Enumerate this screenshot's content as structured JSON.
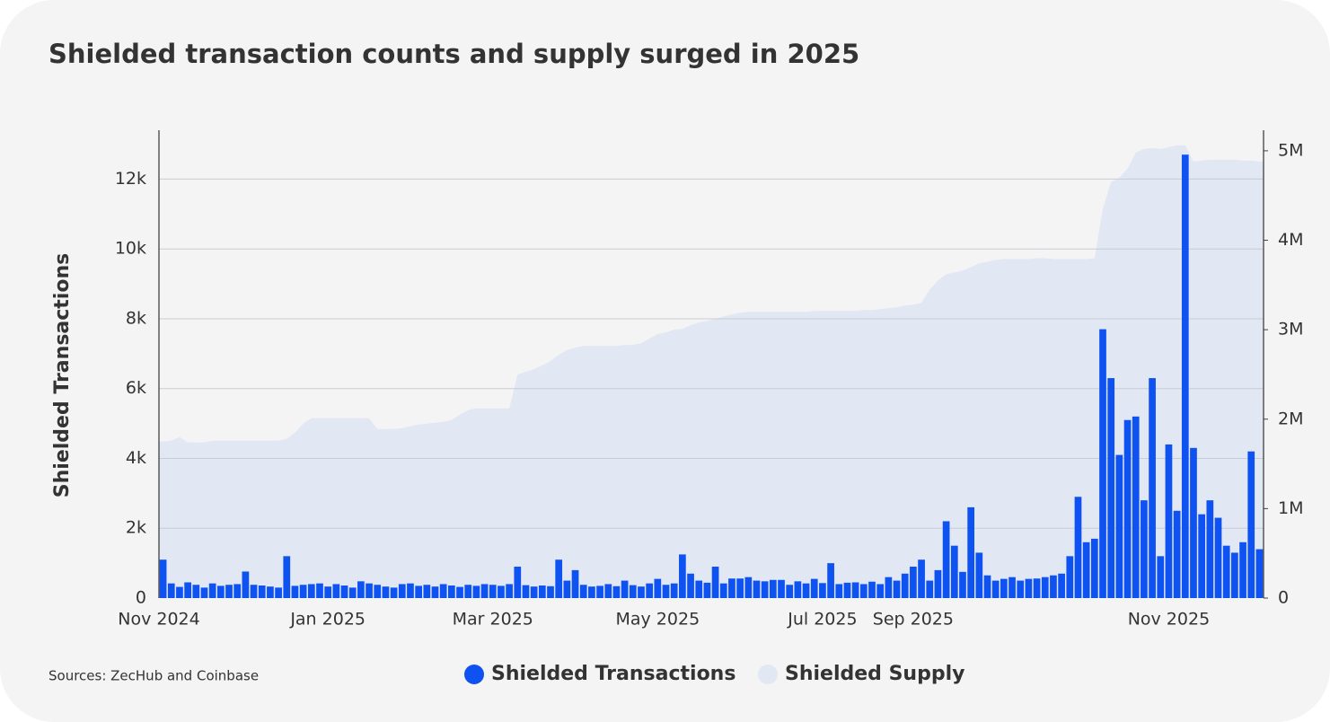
{
  "chart_data": {
    "type": "bar_area",
    "title": "Shielded transaction counts and supply surged in 2025",
    "ylabel": "Shielded Transactions",
    "source": "Sources: ZecHub and Coinbase",
    "categories": [
      "Nov 2024",
      null,
      null,
      null,
      null,
      null,
      null,
      null,
      null,
      null,
      null,
      null,
      null,
      null,
      null,
      null,
      null,
      null,
      null,
      null,
      "Jan 2025",
      null,
      null,
      null,
      null,
      null,
      null,
      null,
      null,
      null,
      null,
      null,
      null,
      null,
      null,
      null,
      null,
      null,
      null,
      null,
      "Mar 2025",
      null,
      null,
      null,
      null,
      null,
      null,
      null,
      null,
      null,
      null,
      null,
      null,
      null,
      null,
      null,
      null,
      null,
      null,
      null,
      "May 2025",
      null,
      null,
      null,
      null,
      null,
      null,
      null,
      null,
      null,
      null,
      null,
      null,
      null,
      null,
      null,
      null,
      null,
      null,
      null,
      "Jul 2025",
      null,
      null,
      null,
      null,
      null,
      null,
      null,
      null,
      null,
      null,
      "Sep 2025",
      null,
      null,
      null,
      null,
      null,
      null,
      null,
      null,
      null,
      null,
      null,
      null,
      null,
      null,
      null,
      null,
      null,
      null,
      null,
      null,
      null,
      null,
      null,
      null,
      null,
      null,
      null,
      null,
      null,
      null,
      "Nov 2025",
      null,
      null,
      null,
      null,
      null,
      null,
      null,
      null,
      null,
      null,
      null
    ],
    "series": [
      {
        "name": "Shielded Transactions",
        "type": "bar",
        "color": "#0f52f2",
        "values": [
          1100,
          420,
          320,
          450,
          380,
          300,
          420,
          350,
          380,
          400,
          760,
          380,
          360,
          330,
          300,
          1200,
          350,
          380,
          400,
          420,
          330,
          400,
          360,
          300,
          480,
          420,
          380,
          330,
          300,
          400,
          420,
          350,
          380,
          330,
          400,
          360,
          320,
          380,
          350,
          400,
          380,
          350,
          400,
          900,
          370,
          330,
          360,
          340,
          1100,
          500,
          800,
          380,
          330,
          350,
          400,
          340,
          500,
          370,
          330,
          420,
          550,
          380,
          420,
          1250,
          700,
          500,
          440,
          900,
          420,
          560,
          560,
          600,
          500,
          480,
          520,
          520,
          380,
          480,
          420,
          550,
          430,
          1000,
          400,
          440,
          450,
          400,
          470,
          400,
          600,
          500,
          700,
          900,
          1100,
          500,
          800,
          2200,
          1500,
          750,
          2600,
          1300,
          650,
          500,
          550,
          600,
          500,
          550,
          560,
          600,
          650,
          700,
          1200,
          2900,
          1600,
          1700,
          7700,
          6300,
          4100,
          5100,
          5200,
          2800,
          6300,
          1200,
          4400,
          2500,
          12700,
          4300,
          2400,
          2800,
          2300,
          1500,
          1300,
          1600,
          4200,
          1400
        ]
      },
      {
        "name": "Shielded Supply",
        "type": "area",
        "axis": "y2",
        "color": "#e1e7f3",
        "values": [
          1750000,
          1760000,
          1800000,
          1740000,
          1740000,
          1740000,
          1760000,
          1760000,
          1760000,
          1760000,
          1760000,
          1760000,
          1760000,
          1760000,
          1760000,
          1780000,
          1850000,
          1950000,
          2010000,
          2010000,
          2010000,
          2010000,
          2010000,
          2010000,
          2010000,
          2010000,
          1890000,
          1890000,
          1890000,
          1900000,
          1920000,
          1940000,
          1950000,
          1960000,
          1970000,
          1990000,
          2050000,
          2100000,
          2120000,
          2120000,
          2120000,
          2120000,
          2120000,
          2500000,
          2530000,
          2560000,
          2600000,
          2650000,
          2720000,
          2770000,
          2800000,
          2820000,
          2820000,
          2820000,
          2820000,
          2820000,
          2830000,
          2830000,
          2850000,
          2900000,
          2950000,
          2970000,
          3000000,
          3010000,
          3050000,
          3080000,
          3100000,
          3120000,
          3150000,
          3170000,
          3190000,
          3200000,
          3200000,
          3200000,
          3200000,
          3200000,
          3200000,
          3200000,
          3200000,
          3210000,
          3210000,
          3210000,
          3210000,
          3210000,
          3210000,
          3220000,
          3220000,
          3230000,
          3240000,
          3250000,
          3270000,
          3280000,
          3300000,
          3450000,
          3550000,
          3620000,
          3640000,
          3660000,
          3700000,
          3740000,
          3760000,
          3780000,
          3790000,
          3790000,
          3790000,
          3790000,
          3800000,
          3800000,
          3790000,
          3790000,
          3790000,
          3790000,
          3790000,
          3800000,
          4350000,
          4650000,
          4700000,
          4800000,
          4980000,
          5020000,
          5030000,
          5020000,
          5040000,
          5060000,
          5060000,
          4880000,
          4890000,
          4900000,
          4900000,
          4900000,
          4900000,
          4890000,
          4890000,
          4880000
        ]
      }
    ],
    "ylim": [
      0,
      13400
    ],
    "yticks": [
      0,
      {
        "value": 2000,
        "label": "2k"
      },
      {
        "value": 4000,
        "label": "4k"
      },
      {
        "value": 6000,
        "label": "6k"
      },
      {
        "value": 8000,
        "label": "8k"
      },
      {
        "value": 10000,
        "label": "10k"
      },
      {
        "value": 12000,
        "label": "12k"
      }
    ],
    "y2lim": [
      0,
      5230000
    ],
    "y2ticks": [
      0,
      {
        "value": 1000000,
        "label": "1M"
      },
      {
        "value": 2000000,
        "label": "2M"
      },
      {
        "value": 3000000,
        "label": "3M"
      },
      {
        "value": 4000000,
        "label": "4M"
      },
      {
        "value": 5000000,
        "label": "5M"
      }
    ],
    "grid": true
  }
}
